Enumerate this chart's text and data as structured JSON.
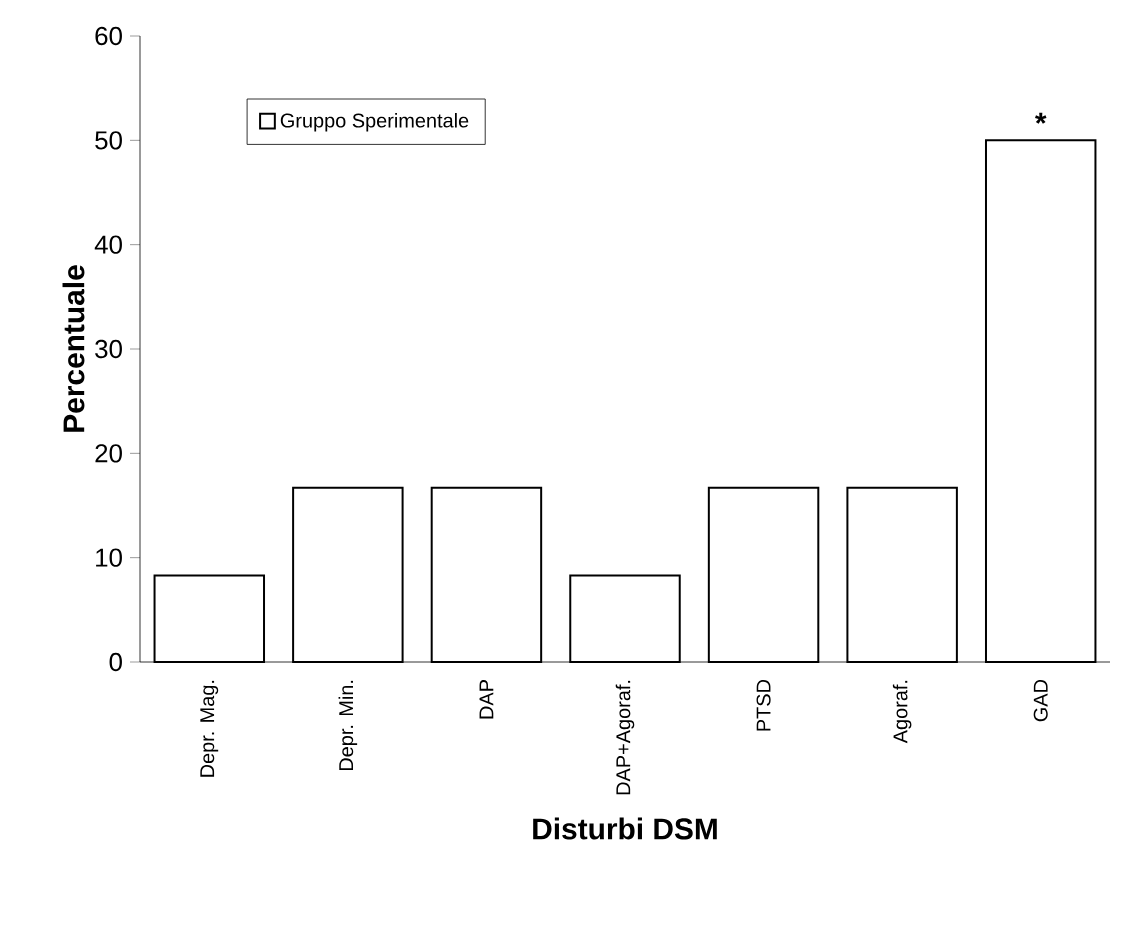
{
  "chart_data": {
    "type": "bar",
    "xlabel": "Disturbi DSM",
    "ylabel": "Percentuale",
    "categories": [
      "Depr. Mag.",
      "Depr. Min.",
      "DAP",
      "DAP+Agoraf.",
      "PTSD",
      "Agoraf.",
      "GAD"
    ],
    "series": [
      {
        "name": "Gruppo Sperimentale",
        "color": "#ffffff",
        "values": [
          8.3,
          16.7,
          16.7,
          8.3,
          16.7,
          16.7,
          50
        ]
      }
    ],
    "ylim": [
      0,
      60
    ],
    "yticks": [
      0,
      10,
      20,
      30,
      40,
      50,
      60
    ],
    "grid": false,
    "legend": "top left",
    "annotations": [
      {
        "text": "*",
        "x": "GAD",
        "y": 50
      }
    ]
  }
}
